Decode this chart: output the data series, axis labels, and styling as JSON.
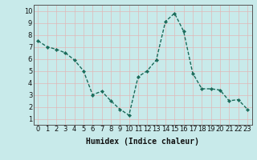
{
  "x": [
    0,
    1,
    2,
    3,
    4,
    5,
    6,
    7,
    8,
    9,
    10,
    11,
    12,
    13,
    14,
    15,
    16,
    17,
    18,
    19,
    20,
    21,
    22,
    23
  ],
  "y": [
    7.5,
    7.0,
    6.8,
    6.5,
    5.9,
    5.0,
    3.0,
    3.3,
    2.5,
    1.8,
    1.3,
    4.5,
    5.0,
    5.9,
    9.1,
    9.8,
    8.3,
    4.8,
    3.5,
    3.5,
    3.4,
    2.5,
    2.6,
    1.8
  ],
  "line_color": "#1a6b5a",
  "marker": "D",
  "markersize": 2.2,
  "linewidth": 1.0,
  "xlabel": "Humidex (Indice chaleur)",
  "xlim": [
    -0.5,
    23.5
  ],
  "ylim": [
    0.5,
    10.5
  ],
  "yticks": [
    1,
    2,
    3,
    4,
    5,
    6,
    7,
    8,
    9,
    10
  ],
  "xticks": [
    0,
    1,
    2,
    3,
    4,
    5,
    6,
    7,
    8,
    9,
    10,
    11,
    12,
    13,
    14,
    15,
    16,
    17,
    18,
    19,
    20,
    21,
    22,
    23
  ],
  "bg_color": "#c8eaea",
  "grid_color": "#e0b8b8",
  "xlabel_fontsize": 7.0,
  "tick_fontsize": 6.0,
  "tick_color": "#111111"
}
